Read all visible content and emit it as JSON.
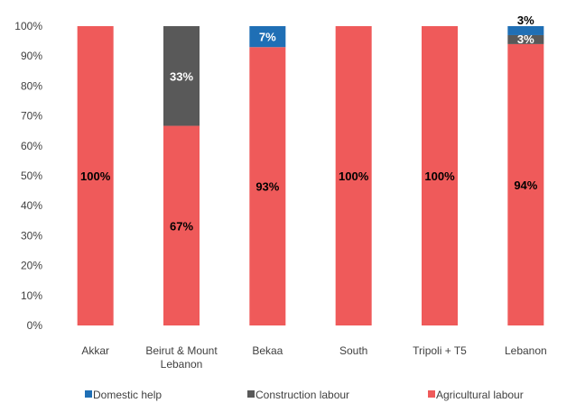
{
  "chart_data": {
    "type": "bar",
    "stacked": true,
    "categories": [
      "Akkar",
      "Beirut & Mount Lebanon",
      "Bekaa",
      "South",
      "Tripoli + T5",
      "Lebanon"
    ],
    "category_lines": [
      [
        "Akkar"
      ],
      [
        "Beirut & Mount",
        "Lebanon"
      ],
      [
        "Bekaa"
      ],
      [
        "South"
      ],
      [
        "Tripoli + T5"
      ],
      [
        "Lebanon"
      ]
    ],
    "series": [
      {
        "name": "Agricultural labour",
        "color": "#ef5a5a",
        "values": [
          100,
          66.7,
          93,
          100,
          100,
          94
        ],
        "labels": [
          "100%",
          "67%",
          "93%",
          "100%",
          "100%",
          "94%"
        ]
      },
      {
        "name": "Construction labour",
        "color": "#595959",
        "values": [
          0,
          33.3,
          0,
          0,
          0,
          3
        ],
        "labels": [
          "",
          "33%",
          "",
          "",
          "",
          "3%"
        ]
      },
      {
        "name": "Domestic help",
        "color": "#1f6fb5",
        "values": [
          0,
          0,
          7,
          0,
          0,
          3
        ],
        "labels": [
          "",
          "",
          "7%",
          "",
          "",
          "3%"
        ]
      }
    ],
    "legend_order": [
      "Domestic help",
      "Construction labour",
      "Agricultural labour"
    ],
    "y_ticks": [
      "0%",
      "10%",
      "20%",
      "30%",
      "40%",
      "50%",
      "60%",
      "70%",
      "80%",
      "90%",
      "100%"
    ],
    "ylim": [
      0,
      100
    ],
    "legend_position": "bottom",
    "grid": false
  }
}
